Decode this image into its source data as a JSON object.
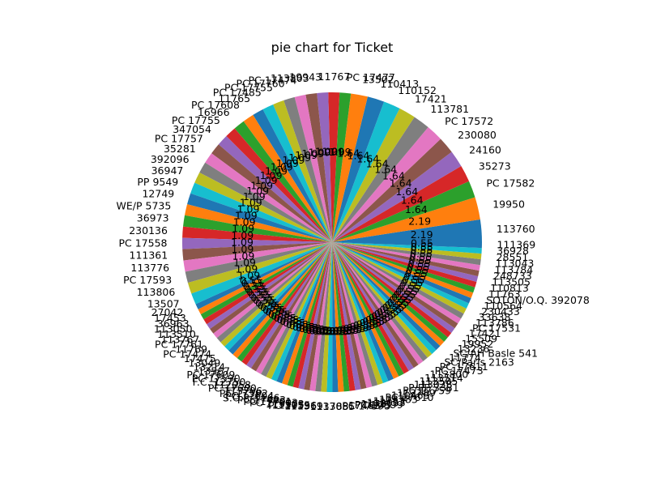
{
  "chart_data": {
    "type": "pie",
    "title": "pie chart for Ticket",
    "start_angle_deg": 0,
    "direction": "counterclockwise",
    "slices": [
      {
        "label": "113760",
        "pct": 2.19
      },
      {
        "label": "19950",
        "pct": 2.19
      },
      {
        "label": "PC 17582",
        "pct": 1.64
      },
      {
        "label": "35273",
        "pct": 1.64
      },
      {
        "label": "24160",
        "pct": 1.64
      },
      {
        "label": "230080",
        "pct": 1.64
      },
      {
        "label": "PC 17572",
        "pct": 1.64
      },
      {
        "label": "113781",
        "pct": 1.64
      },
      {
        "label": "17421",
        "pct": 1.64
      },
      {
        "label": "110152",
        "pct": 1.64
      },
      {
        "label": "110413",
        "pct": 1.64
      },
      {
        "label": "13502",
        "pct": 1.64
      },
      {
        "label": "PC 17477",
        "pct": 1.09
      },
      {
        "label": "11767",
        "pct": 1.09
      },
      {
        "label": "19943",
        "pct": 1.09
      },
      {
        "label": "113803",
        "pct": 1.09
      },
      {
        "label": "PC 17474",
        "pct": 1.09
      },
      {
        "label": "PC 17760",
        "pct": 1.09
      },
      {
        "label": "PC 17755",
        "pct": 1.09
      },
      {
        "label": "PC 17485",
        "pct": 1.09
      },
      {
        "label": "11765",
        "pct": 1.09
      },
      {
        "label": "PC 17608",
        "pct": 1.09
      },
      {
        "label": "16966",
        "pct": 1.09
      },
      {
        "label": "PC 17755",
        "pct": 1.09
      },
      {
        "label": "347054",
        "pct": 1.09
      },
      {
        "label": "PC 17757",
        "pct": 1.09
      },
      {
        "label": "35281",
        "pct": 1.09
      },
      {
        "label": "392096",
        "pct": 1.09
      },
      {
        "label": "36947",
        "pct": 1.09
      },
      {
        "label": "PP 9549",
        "pct": 1.09
      },
      {
        "label": "12749",
        "pct": 1.09
      },
      {
        "label": "WE/P 5735",
        "pct": 1.09
      },
      {
        "label": "36973",
        "pct": 1.09
      },
      {
        "label": "230136",
        "pct": 1.09
      },
      {
        "label": "PC 17558",
        "pct": 1.09
      },
      {
        "label": "111361",
        "pct": 1.09
      },
      {
        "label": "113776",
        "pct": 1.09
      },
      {
        "label": "PC 17593",
        "pct": 1.09
      },
      {
        "label": "113806",
        "pct": 1.09
      },
      {
        "label": "13507",
        "pct": 1.09
      },
      {
        "label": "27042",
        "pct": 0.55
      },
      {
        "label": "17453",
        "pct": 0.55
      },
      {
        "label": "36963",
        "pct": 0.55
      },
      {
        "label": "113050",
        "pct": 0.55
      },
      {
        "label": "113510",
        "pct": 0.55
      },
      {
        "label": "113767",
        "pct": 0.55
      },
      {
        "label": "PC 17761",
        "pct": 0.55
      },
      {
        "label": "11769",
        "pct": 0.55
      },
      {
        "label": "PC 17474",
        "pct": 0.55
      },
      {
        "label": "17475",
        "pct": 0.55
      },
      {
        "label": "13049",
        "pct": 0.55
      },
      {
        "label": "13214",
        "pct": 0.55
      },
      {
        "label": "13567",
        "pct": 0.55
      },
      {
        "label": "PC 17609",
        "pct": 0.55
      },
      {
        "label": "PC 17590",
        "pct": 0.55
      },
      {
        "label": "F.C. 12750",
        "pct": 0.55
      },
      {
        "label": "112058",
        "pct": 0.55
      },
      {
        "label": "PC 17600",
        "pct": 0.55
      },
      {
        "label": "113796",
        "pct": 0.55
      },
      {
        "label": "PC 17592",
        "pct": 0.55
      },
      {
        "label": "PC 17604",
        "pct": 0.55
      },
      {
        "label": "S.O.P. 1166",
        "pct": 0.55
      },
      {
        "label": "PC 17483",
        "pct": 0.55
      },
      {
        "label": "PC 17701",
        "pct": 0.55
      },
      {
        "label": "PC 17603",
        "pct": 0.55
      },
      {
        "label": "113503",
        "pct": 0.55
      },
      {
        "label": "113055",
        "pct": 0.55
      },
      {
        "label": "PC 17596",
        "pct": 0.55
      },
      {
        "label": "111369",
        "pct": 0.55
      },
      {
        "label": "113788",
        "pct": 0.55
      },
      {
        "label": "113055",
        "pct": 0.55
      },
      {
        "label": "PC 17595",
        "pct": 0.55
      },
      {
        "label": "17463",
        "pct": 0.55
      },
      {
        "label": "PC 17599",
        "pct": 0.55
      },
      {
        "label": "11751",
        "pct": 0.55
      },
      {
        "label": "112053",
        "pct": 0.55
      },
      {
        "label": "11753",
        "pct": 0.55
      },
      {
        "label": "113783",
        "pct": 0.55
      },
      {
        "label": "PC 17610",
        "pct": 0.55
      },
      {
        "label": "110465",
        "pct": 0.55
      },
      {
        "label": "113789",
        "pct": 0.55
      },
      {
        "label": "PC 17759",
        "pct": 0.55
      },
      {
        "label": "P/PP 3381",
        "pct": 0.55
      },
      {
        "label": "113028",
        "pct": 0.55
      },
      {
        "label": "113505",
        "pct": 0.55
      },
      {
        "label": "113514",
        "pct": 0.55
      },
      {
        "label": "113800",
        "pct": 0.55
      },
      {
        "label": "PC 17473",
        "pct": 0.55
      },
      {
        "label": "PC 17611",
        "pct": 0.55
      },
      {
        "label": "SC/Paris 2163",
        "pct": 0.55
      },
      {
        "label": "11774",
        "pct": 0.55
      },
      {
        "label": "SC/AH Basle 541",
        "pct": 0.55
      },
      {
        "label": "13236",
        "pct": 0.55
      },
      {
        "label": "19952",
        "pct": 0.55
      },
      {
        "label": "15509",
        "pct": 0.55
      },
      {
        "label": "17421",
        "pct": 0.55
      },
      {
        "label": "PC 17531",
        "pct": 0.55
      },
      {
        "label": "113786",
        "pct": 0.55
      },
      {
        "label": "33638",
        "pct": 0.55
      },
      {
        "label": "230433",
        "pct": 0.55
      },
      {
        "label": "110564",
        "pct": 0.55
      },
      {
        "label": "SOTON/O.Q. 392078",
        "pct": 0.55
      },
      {
        "label": "11763",
        "pct": 0.55
      },
      {
        "label": "110813",
        "pct": 0.55
      },
      {
        "label": "113505",
        "pct": 0.55
      },
      {
        "label": "248733",
        "pct": 0.55
      },
      {
        "label": "113784",
        "pct": 0.55
      },
      {
        "label": "113043",
        "pct": 0.55
      },
      {
        "label": "28551",
        "pct": 0.55
      },
      {
        "label": "36928",
        "pct": 0.55
      },
      {
        "label": "111369",
        "pct": 0.55
      }
    ]
  }
}
